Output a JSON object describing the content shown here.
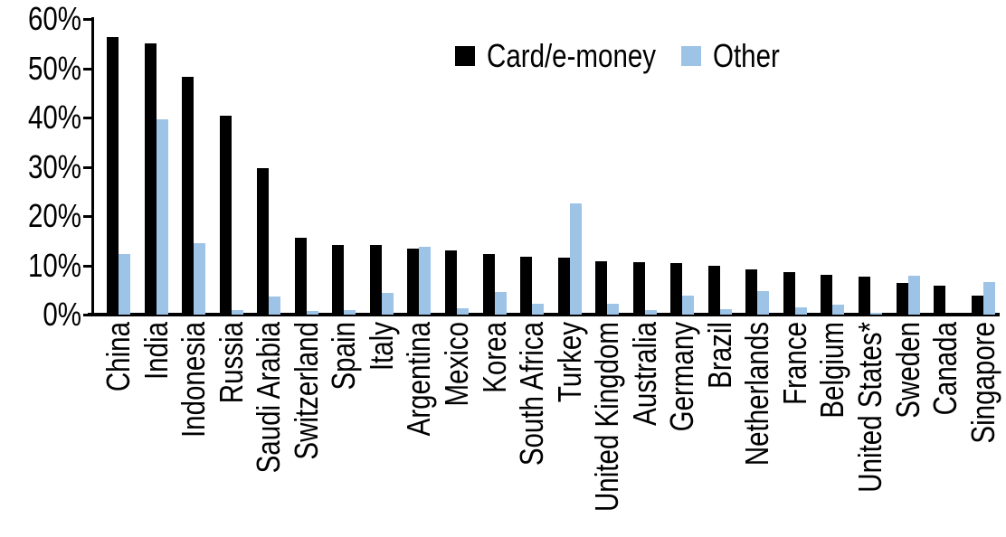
{
  "chart_data": {
    "type": "bar",
    "title": "",
    "xlabel": "",
    "ylabel": "",
    "ylim": [
      0,
      60
    ],
    "ytick_step": 10,
    "yticks": [
      "60%",
      "50%",
      "40%",
      "30%",
      "20%",
      "10%",
      "0%"
    ],
    "grid": false,
    "legend_position": "top-center",
    "categories": [
      "China",
      "India",
      "Indonesia",
      "Russia",
      "Saudi Arabia",
      "Switzerland",
      "Spain",
      "Italy",
      "Argentina",
      "Mexico",
      "Korea",
      "South Africa",
      "Turkey",
      "United Kingdom",
      "Australia",
      "Germany",
      "Brazil",
      "Netherlands",
      "France",
      "Belgium",
      "United States*",
      "Sweden",
      "Canada",
      "Singapore"
    ],
    "series": [
      {
        "name": "Card/e-money",
        "color": "#000000",
        "values": [
          56.3,
          55.0,
          48.2,
          40.4,
          29.8,
          15.6,
          14.2,
          14.1,
          13.4,
          13.0,
          12.3,
          11.7,
          11.5,
          10.9,
          10.6,
          10.4,
          9.9,
          9.2,
          8.6,
          8.1,
          7.7,
          6.5,
          5.8,
          3.8
        ]
      },
      {
        "name": "Other",
        "color": "#9DC3E6",
        "values": [
          12.3,
          39.7,
          14.5,
          0.9,
          3.7,
          0.7,
          0.9,
          4.4,
          13.8,
          1.2,
          4.5,
          2.2,
          22.5,
          2.2,
          1.0,
          3.8,
          1.1,
          4.8,
          1.4,
          2.0,
          0.3,
          7.9,
          0,
          6.6
        ]
      }
    ]
  }
}
